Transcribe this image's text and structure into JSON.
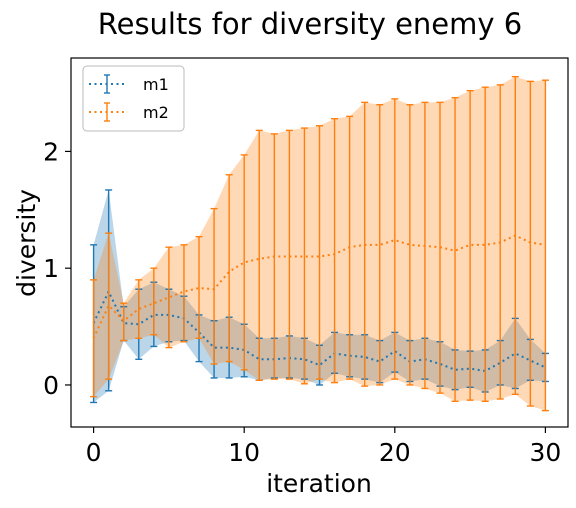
{
  "chart_data": {
    "type": "line",
    "title": "Results for diversity enemy 6",
    "xlabel": "iteration",
    "ylabel": "diversity",
    "xlim": [
      -1.5,
      31.5
    ],
    "ylim": [
      -0.36,
      2.8
    ],
    "xticks": [
      0,
      10,
      20,
      30
    ],
    "yticks": [
      0,
      1,
      2
    ],
    "grid": false,
    "legend_position": "upper-left",
    "series": [
      {
        "name": "m1",
        "color": "#1f77b4",
        "style": "dotted-with-errorbars",
        "x": [
          0,
          1,
          2,
          3,
          4,
          5,
          6,
          7,
          8,
          9,
          10,
          11,
          12,
          13,
          14,
          15,
          16,
          17,
          18,
          19,
          20,
          21,
          22,
          23,
          24,
          25,
          26,
          27,
          28,
          29,
          30
        ],
        "mean": [
          0.53,
          0.8,
          0.53,
          0.52,
          0.6,
          0.6,
          0.57,
          0.45,
          0.32,
          0.32,
          0.3,
          0.22,
          0.22,
          0.23,
          0.22,
          0.17,
          0.27,
          0.25,
          0.24,
          0.2,
          0.29,
          0.2,
          0.22,
          0.18,
          0.13,
          0.14,
          0.12,
          0.19,
          0.27,
          0.21,
          0.15
        ],
        "upper": [
          1.2,
          1.67,
          0.67,
          0.82,
          0.88,
          0.82,
          0.76,
          0.6,
          0.55,
          0.58,
          0.52,
          0.4,
          0.4,
          0.42,
          0.4,
          0.34,
          0.45,
          0.43,
          0.43,
          0.38,
          0.45,
          0.38,
          0.4,
          0.37,
          0.3,
          0.29,
          0.3,
          0.38,
          0.57,
          0.39,
          0.27
        ],
        "lower": [
          -0.15,
          -0.05,
          0.38,
          0.22,
          0.33,
          0.37,
          0.38,
          0.2,
          0.06,
          0.06,
          0.07,
          0.04,
          0.06,
          0.06,
          0.05,
          0.0,
          0.1,
          0.07,
          0.05,
          0.02,
          0.11,
          0.03,
          0.05,
          -0.01,
          -0.04,
          -0.02,
          -0.06,
          0.0,
          -0.03,
          0.04,
          0.03
        ]
      },
      {
        "name": "m2",
        "color": "#ff7f0e",
        "style": "dotted-with-errorbars",
        "x": [
          0,
          1,
          2,
          3,
          4,
          5,
          6,
          7,
          8,
          9,
          10,
          11,
          12,
          13,
          14,
          15,
          16,
          17,
          18,
          19,
          20,
          21,
          22,
          23,
          24,
          25,
          26,
          27,
          28,
          29,
          30
        ],
        "mean": [
          0.4,
          0.68,
          0.55,
          0.65,
          0.7,
          0.75,
          0.8,
          0.83,
          0.82,
          0.97,
          1.05,
          1.08,
          1.1,
          1.1,
          1.1,
          1.1,
          1.12,
          1.18,
          1.2,
          1.2,
          1.24,
          1.2,
          1.19,
          1.18,
          1.15,
          1.2,
          1.2,
          1.22,
          1.28,
          1.22,
          1.2
        ],
        "upper": [
          0.9,
          1.3,
          0.7,
          0.9,
          1.0,
          1.18,
          1.2,
          1.27,
          1.51,
          1.8,
          1.97,
          2.18,
          2.15,
          2.18,
          2.2,
          2.22,
          2.28,
          2.3,
          2.42,
          2.4,
          2.45,
          2.4,
          2.42,
          2.42,
          2.46,
          2.52,
          2.55,
          2.57,
          2.64,
          2.6,
          2.61
        ],
        "lower": [
          -0.1,
          0.05,
          0.38,
          0.4,
          0.43,
          0.32,
          0.37,
          0.4,
          0.18,
          0.2,
          0.13,
          0.04,
          0.05,
          0.05,
          0.01,
          0.05,
          0.02,
          0.05,
          -0.01,
          0.0,
          0.05,
          0.0,
          -0.03,
          -0.07,
          -0.14,
          -0.13,
          -0.14,
          -0.12,
          -0.08,
          -0.18,
          -0.22
        ]
      }
    ]
  }
}
